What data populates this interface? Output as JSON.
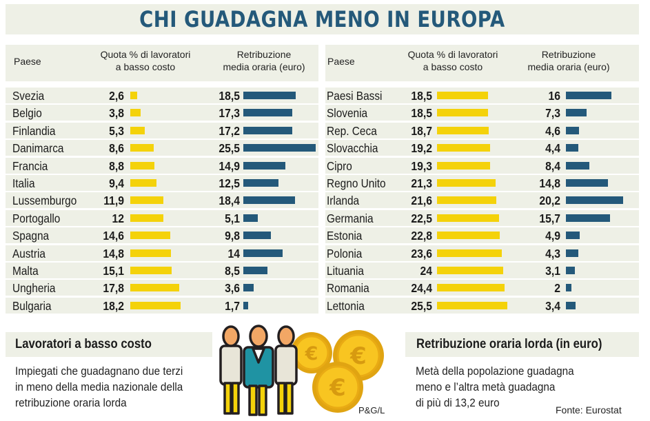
{
  "title": "CHI GUADAGNA MENO IN EUROPA",
  "colors": {
    "accent": "#24597a",
    "quota_bar": "#f4d20a",
    "panel_bg": "#eef0e6"
  },
  "headers": {
    "country": "Paese",
    "quota_line1": "Quota % di lavoratori",
    "quota_line2": "a basso costo",
    "wage_line1": "Retribuzione",
    "wage_line2": "media oraria (euro)"
  },
  "chart_data": {
    "type": "bar",
    "title": "CHI GUADAGNA MENO IN EUROPA",
    "series": [
      {
        "name": "Quota % di lavoratori a basso costo",
        "color": "#f4d20a"
      },
      {
        "name": "Retribuzione media oraria (euro)",
        "color": "#24597a"
      }
    ],
    "left": [
      {
        "country": "Svezia",
        "quota": "2,6",
        "wage": "18,5"
      },
      {
        "country": "Belgio",
        "quota": "3,8",
        "wage": "17,3"
      },
      {
        "country": "Finlandia",
        "quota": "5,3",
        "wage": "17,2"
      },
      {
        "country": "Danimarca",
        "quota": "8,6",
        "wage": "25,5"
      },
      {
        "country": "Francia",
        "quota": "8,8",
        "wage": "14,9"
      },
      {
        "country": "Italia",
        "quota": "9,4",
        "wage": "12,5"
      },
      {
        "country": "Lussemburgo",
        "quota": "11,9",
        "wage": "18,4"
      },
      {
        "country": "Portogallo",
        "quota": "12",
        "wage": "5,1"
      },
      {
        "country": "Spagna",
        "quota": "14,6",
        "wage": "9,8"
      },
      {
        "country": "Austria",
        "quota": "14,8",
        "wage": "14"
      },
      {
        "country": "Malta",
        "quota": "15,1",
        "wage": "8,5"
      },
      {
        "country": "Ungheria",
        "quota": "17,8",
        "wage": "3,6"
      },
      {
        "country": "Bulgaria",
        "quota": "18,2",
        "wage": "1,7"
      }
    ],
    "right": [
      {
        "country": "Paesi Bassi",
        "quota": "18,5",
        "wage": "16"
      },
      {
        "country": "Slovenia",
        "quota": "18,5",
        "wage": "7,3"
      },
      {
        "country": "Rep. Ceca",
        "quota": "18,7",
        "wage": "4,6"
      },
      {
        "country": "Slovacchia",
        "quota": "19,2",
        "wage": "4,4"
      },
      {
        "country": "Cipro",
        "quota": "19,3",
        "wage": "8,4"
      },
      {
        "country": "Regno Unito",
        "quota": "21,3",
        "wage": "14,8"
      },
      {
        "country": "Irlanda",
        "quota": "21,6",
        "wage": "20,2"
      },
      {
        "country": "Germania",
        "quota": "22,5",
        "wage": "15,7"
      },
      {
        "country": "Estonia",
        "quota": "22,8",
        "wage": "4,9"
      },
      {
        "country": "Polonia",
        "quota": "23,6",
        "wage": "4,3"
      },
      {
        "country": "Lituania",
        "quota": "24",
        "wage": "3,1"
      },
      {
        "country": "Romania",
        "quota": "24,4",
        "wage": "2"
      },
      {
        "country": "Lettonia",
        "quota": "25,5",
        "wage": "3,4"
      }
    ]
  },
  "notes": {
    "left_title": "Lavoratori a basso costo",
    "left_line1": "Impiegati che guadagnano due terzi",
    "left_line2": "in meno della media nazionale della",
    "left_line3": "retribuzione oraria lorda",
    "right_title": "Retribuzione oraria lorda (in euro)",
    "right_line1": "Metà della popolazione guadagna",
    "right_line2": "meno e l’altra metà guadagna",
    "right_line3": "di più di 13,2 euro"
  },
  "credits": {
    "artist": "P&G/L",
    "source": "Fonte: Eurostat"
  },
  "illustration": {
    "icons": [
      "workers-icon",
      "euro-coin-icon"
    ],
    "coin_symbol": "€"
  }
}
